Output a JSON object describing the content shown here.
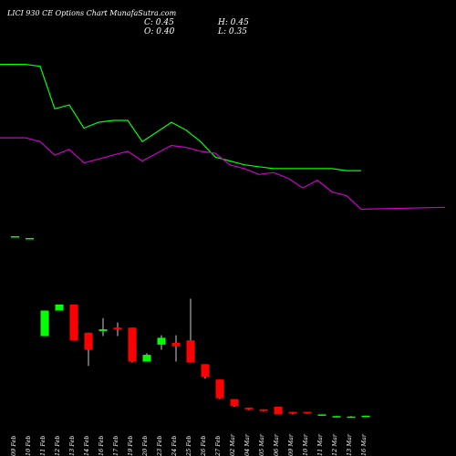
{
  "header": {
    "title": "LICI 930  CE Options Chart MunafaSutra.com",
    "close_label": "C:",
    "close_value": "0.45",
    "high_label": "H:",
    "high_value": "0.45",
    "open_label": "O:",
    "open_value": "0.40",
    "low_label": "L:",
    "low_value": "0.35"
  },
  "chart_data": {
    "type": "candlestick",
    "title": "LICI 930  CE Options Chart MunafaSutra.com",
    "background": "#000000",
    "colors": {
      "up": "#00ff00",
      "down": "#ff0000",
      "neutral": "#ffffff",
      "ma_fast": "#00ff00",
      "ma_slow": "#cc00cc"
    },
    "categories": [
      "09 Feb",
      "10 Feb",
      "11 Feb",
      "12 Feb",
      "13 Feb",
      "14 Feb",
      "16 Feb",
      "17 Feb",
      "19 Feb",
      "20 Feb",
      "23 Feb",
      "24 Feb",
      "25 Feb",
      "26 Feb",
      "27 Feb",
      "02 Mar",
      "04 Mar",
      "05 Mar",
      "06 Mar",
      "09 Mar",
      "10 Mar",
      "11 Mar",
      "12 Mar",
      "13 Mar",
      "16 Mar"
    ],
    "candles": [
      {
        "date": "09 Feb",
        "open": null,
        "high": null,
        "low": null,
        "close": null
      },
      {
        "date": "10 Feb",
        "open": null,
        "high": null,
        "low": null,
        "close": null
      },
      {
        "date": "11 Feb",
        "open": 9.8,
        "high": 12.8,
        "low": 9.8,
        "close": 12.8
      },
      {
        "date": "12 Feb",
        "open": 12.8,
        "high": 13.5,
        "low": 12.8,
        "close": 13.5
      },
      {
        "date": "13 Feb",
        "open": 13.5,
        "high": 13.5,
        "low": 9.3,
        "close": 9.3
      },
      {
        "date": "14 Feb",
        "open": 10.2,
        "high": 10.2,
        "low": 6.3,
        "close": 8.2
      },
      {
        "date": "16 Feb",
        "open": 10.4,
        "high": 11.9,
        "low": 9.8,
        "close": 10.6
      },
      {
        "date": "17 Feb",
        "open": 10.8,
        "high": 11.4,
        "low": 9.8,
        "close": 10.6
      },
      {
        "date": "19 Feb",
        "open": 10.8,
        "high": 10.8,
        "low": 6.7,
        "close": 6.8
      },
      {
        "date": "20 Feb",
        "open": 6.8,
        "high": 7.8,
        "low": 6.8,
        "close": 7.6
      },
      {
        "date": "23 Feb",
        "open": 8.8,
        "high": 9.9,
        "low": 8.2,
        "close": 9.6
      },
      {
        "date": "24 Feb",
        "open": 9.0,
        "high": 9.9,
        "low": 6.8,
        "close": 8.6
      },
      {
        "date": "25 Feb",
        "open": 9.3,
        "high": 14.2,
        "low": 6.7,
        "close": 6.7
      },
      {
        "date": "26 Feb",
        "open": 6.5,
        "high": 6.5,
        "low": 4.8,
        "close": 5.0
      },
      {
        "date": "27 Feb",
        "open": 4.7,
        "high": 4.7,
        "low": 2.4,
        "close": 2.5
      },
      {
        "date": "02 Mar",
        "open": 2.4,
        "high": 2.4,
        "low": 1.5,
        "close": 1.6
      },
      {
        "date": "04 Mar",
        "open": 1.4,
        "high": 1.4,
        "low": 1.1,
        "close": 1.2
      },
      {
        "date": "05 Mar",
        "open": 1.2,
        "high": 1.2,
        "low": 0.95,
        "close": 1.0
      },
      {
        "date": "06 Mar",
        "open": 1.5,
        "high": 1.5,
        "low": 0.6,
        "close": 0.6
      },
      {
        "date": "09 Mar",
        "open": 0.9,
        "high": 0.9,
        "low": 0.6,
        "close": 0.7
      },
      {
        "date": "10 Mar",
        "open": 0.9,
        "high": 0.9,
        "low": 0.7,
        "close": 0.75
      },
      {
        "date": "11 Mar",
        "open": 0.55,
        "high": 0.6,
        "low": 0.45,
        "close": 0.6
      },
      {
        "date": "12 Mar",
        "open": 0.4,
        "high": 0.45,
        "low": 0.35,
        "close": 0.4
      },
      {
        "date": "13 Mar",
        "open": 0.35,
        "high": 0.4,
        "low": 0.3,
        "close": 0.35
      },
      {
        "date": "16 Mar",
        "open": 0.4,
        "high": 0.45,
        "low": 0.35,
        "close": 0.45
      }
    ],
    "moving_averages": [
      {
        "color": "#00ff00",
        "values": [
          16.5,
          16.5,
          16.4,
          14.2,
          14.4,
          13.2,
          13.5,
          13.6,
          13.6,
          12.5,
          13.0,
          13.5,
          13.1,
          12.5,
          11.7,
          11.5,
          11.3,
          11.2,
          11.1,
          11.1,
          11.1,
          11.1,
          11.1,
          11.0,
          11.0
        ]
      },
      {
        "color": "#cc00cc",
        "values": [
          12.7,
          12.7,
          12.5,
          11.8,
          12.1,
          11.4,
          11.6,
          11.8,
          12.0,
          11.5,
          11.9,
          12.3,
          12.2,
          12.0,
          11.9,
          11.3,
          11.1,
          10.8,
          10.9,
          10.6,
          10.1,
          10.5,
          9.9,
          9.7,
          9.0
        ]
      }
    ],
    "ma_extra_points": [
      9.0,
      9.1
    ],
    "volume_marks": [
      {
        "date": "09 Feb",
        "value": 0.4
      },
      {
        "date": "10 Feb",
        "value": 0.3
      }
    ],
    "ylim": [
      0,
      15
    ],
    "grid": false,
    "legend": "none"
  }
}
